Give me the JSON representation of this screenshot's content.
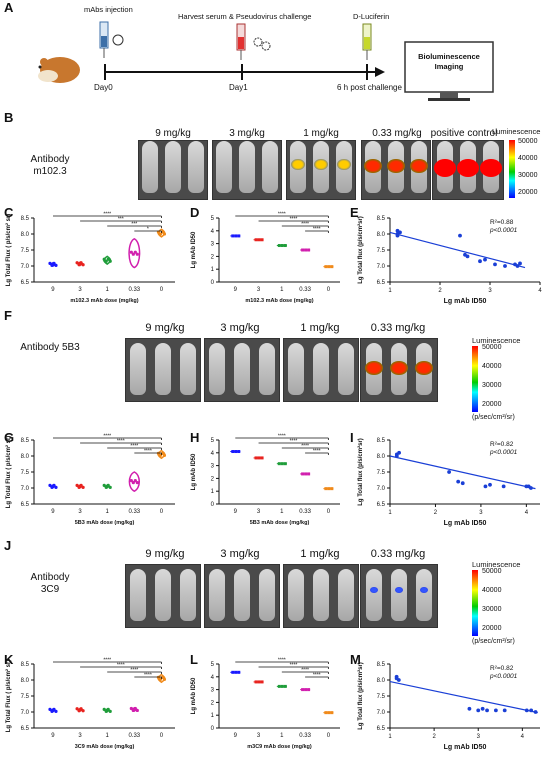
{
  "panel_labels": {
    "A": "A",
    "B": "B",
    "C": "C",
    "D": "D",
    "E": "E",
    "F": "F",
    "G": "G",
    "H": "H",
    "I": "I",
    "J": "J",
    "K": "K",
    "L": "L",
    "M": "M"
  },
  "timeline": {
    "events": [
      {
        "label": "mAbs injection"
      },
      {
        "label": "Harvest serum & Pseudovirus challenge"
      },
      {
        "label": "D-Luciferin"
      }
    ],
    "days": [
      "Day0",
      "Day1",
      "6 h post challenge"
    ],
    "box": "Bioluminescence Imaging"
  },
  "imaging_rows": [
    {
      "antibody": "Antibody m102.3",
      "doses": [
        "9 mg/kg",
        "3 mg/kg",
        "1 mg/kg",
        "0.33 mg/kg",
        "positive control"
      ],
      "signal": [
        0,
        0,
        2,
        3,
        4
      ]
    },
    {
      "antibody": "Antibody 5B3",
      "doses": [
        "9 mg/kg",
        "3 mg/kg",
        "1 mg/kg",
        "0.33 mg/kg"
      ],
      "signal": [
        0,
        0,
        0,
        3
      ]
    },
    {
      "antibody": "Antibody 3C9",
      "doses": [
        "9 mg/kg",
        "3 mg/kg",
        "1 mg/kg",
        "0.33 mg/kg"
      ],
      "signal": [
        0,
        0,
        0,
        1
      ]
    }
  ],
  "colorbar": {
    "title": "Luminescence",
    "ticks": [
      "50000",
      "40000",
      "30000",
      "20000"
    ],
    "unit": "(p/sec/cm²/sr)"
  },
  "sig": {
    "s4": "****",
    "s3": "***",
    "s1": "*"
  },
  "chart_data": [
    {
      "id": "C",
      "type": "violin",
      "categories": [
        "9",
        "3",
        "1",
        "0.33",
        "0"
      ],
      "xlabel": "m102.3 mAb dose (mg/kg)",
      "ylabel": "Lg Total Flux ( p/s/cm² sr)",
      "ylim": [
        6.5,
        8.5
      ],
      "yticks": [
        6.5,
        7.0,
        7.5,
        8.0,
        8.5
      ],
      "medians": [
        7.05,
        7.07,
        7.18,
        7.4,
        8.03
      ],
      "spread": [
        0.05,
        0.05,
        0.12,
        0.45,
        0.12
      ],
      "colors": [
        "#1a1aff",
        "#e8231f",
        "#1f9d3a",
        "#d11fae",
        "#f08a1a"
      ],
      "significance": [
        "****",
        "***",
        "***",
        "*"
      ]
    },
    {
      "id": "D",
      "type": "scatter",
      "categories": [
        "9",
        "3",
        "1",
        "0.33",
        "0"
      ],
      "xlabel": "m102.3 mAb dose (mg/kg)",
      "ylabel": "Lg mAb ID50",
      "ylim": [
        0,
        5
      ],
      "yticks": [
        0,
        1,
        2,
        3,
        4,
        5
      ],
      "values": [
        3.6,
        3.3,
        2.85,
        2.5,
        1.2
      ],
      "colors": [
        "#1a1aff",
        "#e8231f",
        "#1f9d3a",
        "#d11fae",
        "#f08a1a"
      ],
      "significance": [
        "****",
        "****",
        "****",
        "****"
      ]
    },
    {
      "id": "E",
      "type": "scatter-regression",
      "xlabel": "Lg  mAb ID50",
      "ylabel": "Lg Total flux (p/s/cm²sr)",
      "xlim": [
        1,
        4
      ],
      "ylim": [
        6.5,
        8.5
      ],
      "xticks": [
        1,
        2,
        3,
        4
      ],
      "yticks": [
        6.5,
        7.0,
        7.5,
        8.0,
        8.5
      ],
      "points": [
        [
          1.15,
          8.1
        ],
        [
          1.15,
          8.0
        ],
        [
          1.2,
          8.05
        ],
        [
          1.15,
          7.95
        ],
        [
          2.4,
          7.95
        ],
        [
          2.5,
          7.35
        ],
        [
          2.55,
          7.3
        ],
        [
          2.8,
          7.15
        ],
        [
          2.9,
          7.2
        ],
        [
          3.1,
          7.05
        ],
        [
          3.3,
          7.0
        ],
        [
          3.5,
          7.05
        ],
        [
          3.55,
          7.0
        ],
        [
          3.6,
          7.08
        ]
      ],
      "fit": [
        [
          1.0,
          8.05
        ],
        [
          3.7,
          6.95
        ]
      ],
      "r2": "R²=0.88",
      "p": "p<0.0001"
    },
    {
      "id": "G",
      "type": "violin",
      "categories": [
        "9",
        "3",
        "1",
        "0.33",
        "0"
      ],
      "xlabel": "5B3 mAb dose (mg/kg)",
      "ylabel": "Lg Total Flux ( p/s/cm² sr)",
      "ylim": [
        6.5,
        8.5
      ],
      "yticks": [
        6.5,
        7.0,
        7.5,
        8.0,
        8.5
      ],
      "medians": [
        7.05,
        7.05,
        7.05,
        7.2,
        8.05
      ],
      "spread": [
        0.04,
        0.04,
        0.04,
        0.3,
        0.12
      ],
      "colors": [
        "#1a1aff",
        "#e8231f",
        "#1f9d3a",
        "#d11fae",
        "#f08a1a"
      ],
      "significance": [
        "****",
        "****",
        "****",
        "****"
      ]
    },
    {
      "id": "H",
      "type": "scatter",
      "categories": [
        "9",
        "3",
        "1",
        "0.33",
        "0"
      ],
      "xlabel": "5B3 mAb dose (mg/kg)",
      "ylabel": "Lg mAb ID50",
      "ylim": [
        0,
        5
      ],
      "yticks": [
        0,
        1,
        2,
        3,
        4,
        5
      ],
      "values": [
        4.1,
        3.6,
        3.15,
        2.35,
        1.2
      ],
      "colors": [
        "#1a1aff",
        "#e8231f",
        "#1f9d3a",
        "#d11fae",
        "#f08a1a"
      ],
      "significance": [
        "****",
        "****",
        "****",
        "****"
      ]
    },
    {
      "id": "I",
      "type": "scatter-regression",
      "xlabel": "Lg  mAb ID50",
      "ylabel": "Lg Total flux (p/s/cm²sr)",
      "xlim": [
        1,
        4.3
      ],
      "ylim": [
        6.5,
        8.5
      ],
      "xticks": [
        1,
        2,
        3,
        4
      ],
      "yticks": [
        6.5,
        7.0,
        7.5,
        8.0,
        8.5
      ],
      "points": [
        [
          1.15,
          8.05
        ],
        [
          1.15,
          8.0
        ],
        [
          1.2,
          8.1
        ],
        [
          2.3,
          7.5
        ],
        [
          2.5,
          7.2
        ],
        [
          2.6,
          7.15
        ],
        [
          3.1,
          7.05
        ],
        [
          3.2,
          7.1
        ],
        [
          3.5,
          7.05
        ],
        [
          4.0,
          7.05
        ],
        [
          4.05,
          7.05
        ],
        [
          4.1,
          7.0
        ]
      ],
      "fit": [
        [
          1.0,
          8.0
        ],
        [
          4.2,
          6.98
        ]
      ],
      "r2": "R²=0.82",
      "p": "p<0.0001"
    },
    {
      "id": "K",
      "type": "violin",
      "categories": [
        "9",
        "3",
        "1",
        "0.33",
        "0"
      ],
      "xlabel": "3C9 mAb dose (mg/kg)",
      "ylabel": "Lg Total Flux ( p/s/cm² sr)",
      "ylim": [
        6.5,
        8.5
      ],
      "yticks": [
        6.5,
        7.0,
        7.5,
        8.0,
        8.5
      ],
      "medians": [
        7.05,
        7.07,
        7.05,
        7.08,
        8.05
      ],
      "spread": [
        0.04,
        0.04,
        0.04,
        0.05,
        0.12
      ],
      "colors": [
        "#1a1aff",
        "#e8231f",
        "#1f9d3a",
        "#d11fae",
        "#f08a1a"
      ],
      "significance": [
        "****",
        "****",
        "****",
        "****"
      ]
    },
    {
      "id": "L",
      "type": "scatter",
      "categories": [
        "9",
        "3",
        "1",
        "0.33",
        "0"
      ],
      "xlabel": "m3C9 mAb dose (mg/kg)",
      "ylabel": "Lg mAb ID50",
      "ylim": [
        0,
        5
      ],
      "yticks": [
        0,
        1,
        2,
        3,
        4,
        5
      ],
      "values": [
        4.35,
        3.6,
        3.25,
        3.0,
        1.2
      ],
      "colors": [
        "#1a1aff",
        "#e8231f",
        "#1f9d3a",
        "#d11fae",
        "#f08a1a"
      ],
      "significance": [
        "****",
        "****",
        "****",
        "****"
      ]
    },
    {
      "id": "M",
      "type": "scatter-regression",
      "xlabel": "Lg  mAb ID50",
      "ylabel": "Lg Total flux (p/s/cm²sr)",
      "xlim": [
        1,
        4.4
      ],
      "ylim": [
        6.5,
        8.5
      ],
      "xticks": [
        1,
        2,
        3,
        4
      ],
      "yticks": [
        6.5,
        7.0,
        7.5,
        8.0,
        8.5
      ],
      "points": [
        [
          1.15,
          8.1
        ],
        [
          1.15,
          8.05
        ],
        [
          1.2,
          8.0
        ],
        [
          2.8,
          7.1
        ],
        [
          3.0,
          7.05
        ],
        [
          3.1,
          7.1
        ],
        [
          3.2,
          7.05
        ],
        [
          3.4,
          7.05
        ],
        [
          3.6,
          7.05
        ],
        [
          4.1,
          7.05
        ],
        [
          4.2,
          7.05
        ],
        [
          4.3,
          7.0
        ]
      ],
      "fit": [
        [
          1.0,
          7.95
        ],
        [
          4.35,
          6.98
        ]
      ],
      "r2": "R²=0.82",
      "p": "p<0.0001"
    }
  ]
}
